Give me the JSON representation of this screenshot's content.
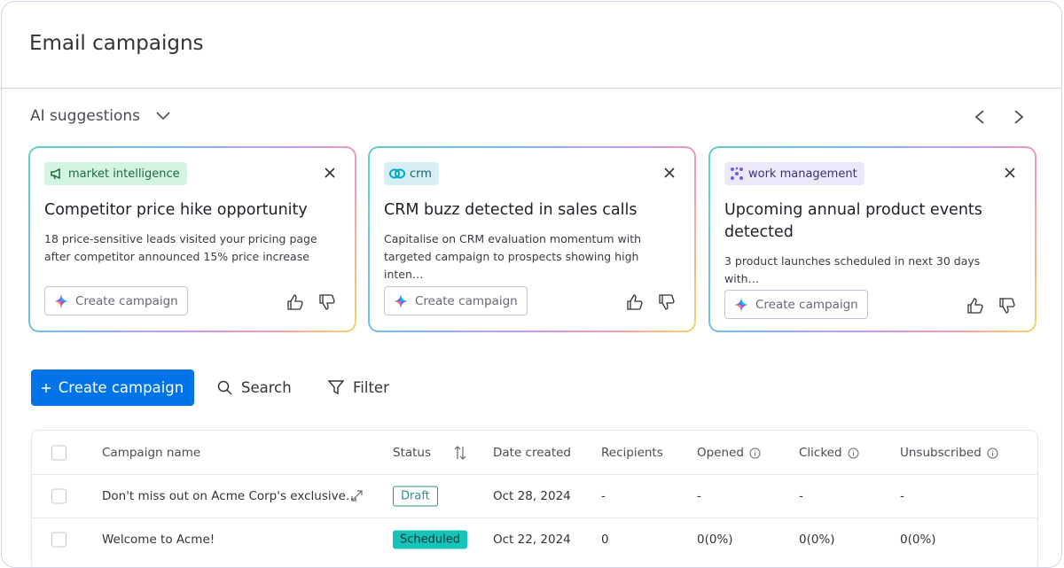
{
  "header": {
    "title": "Email campaigns"
  },
  "suggestions": {
    "label": "AI suggestions",
    "cards": [
      {
        "tag": "market intelligence",
        "title": "Competitor price hike opportunity",
        "description": "18 price-sensitive leads visited your pricing page after competitor announced 15% price increase",
        "button": "Create campaign"
      },
      {
        "tag": "crm",
        "title": "CRM buzz detected in sales calls",
        "description": "Capitalise on CRM evaluation momentum with targeted campaign to prospects showing high inten…",
        "button": "Create campaign"
      },
      {
        "tag": "work management",
        "title": "Upcoming annual product events detected",
        "description": "3 product launches scheduled in next 30 days with…",
        "button": "Create campaign"
      }
    ]
  },
  "toolbar": {
    "create": "Create campaign",
    "search": "Search",
    "filter": "Filter"
  },
  "table": {
    "columns": [
      "Campaign name",
      "Status",
      "Date created",
      "Recipients",
      "Opened",
      "Clicked",
      "Unsubscribed"
    ],
    "rows": [
      [
        "Don't miss out on Acme Corp's exclusive…",
        "Draft",
        "Oct 28, 2024",
        "-",
        "-",
        "-",
        "-"
      ],
      [
        "Welcome to Acme!",
        "Scheduled",
        "Oct 22, 2024",
        "0",
        "0(0%)",
        "0(0%)",
        "0(0%)"
      ]
    ]
  }
}
